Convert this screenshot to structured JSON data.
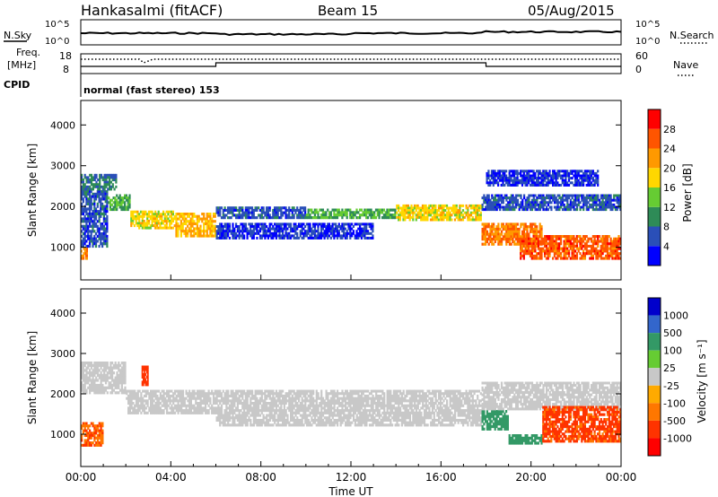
{
  "header": {
    "station": "Hankasalmi (fitACF)",
    "beam": "Beam 15",
    "date": "05/Aug/2015"
  },
  "top_panels": {
    "nsky_label": "N.Sky",
    "nsearch_label": "N.Search",
    "noise_ticks": [
      "10^5",
      "10^0"
    ],
    "freq_label_1": "Freq.",
    "freq_label_2": "[MHz]",
    "freq_ticks": [
      "18",
      "8"
    ],
    "nave_label": "Nave",
    "nave_ticks": [
      "60",
      "0"
    ],
    "cpid_label": "CPID",
    "cpid_text": "normal (fast stereo) 153"
  },
  "colors": {
    "power": [
      "#0000ff",
      "#2a4fb8",
      "#2e8b57",
      "#66cc33",
      "#ffd700",
      "#ff9900",
      "#ff5500",
      "#ff0000"
    ],
    "velocity": [
      "#0000cc",
      "#3366cc",
      "#339966",
      "#66cc33",
      "#c8c8c8",
      "#ffaa00",
      "#ff7700",
      "#ff3300",
      "#ff0000"
    ]
  },
  "chart_data": [
    {
      "type": "heatmap",
      "name": "power",
      "ylabel": "Slant Range [km]",
      "ylim": [
        200,
        4600
      ],
      "yticks": [
        1000,
        2000,
        3000,
        4000
      ],
      "colorbar_label": "Power [dB]",
      "colorbar_ticks": [
        "4",
        "8",
        "12",
        "16",
        "20",
        "24",
        "28"
      ],
      "bands": [
        {
          "x0": 0.0,
          "x1": 0.3,
          "r0": 700,
          "r1": 1000,
          "v": 26
        },
        {
          "x0": 0.0,
          "x1": 1.2,
          "r0": 1000,
          "r1": 2400,
          "v": 8
        },
        {
          "x0": 0.0,
          "x1": 1.6,
          "r0": 2400,
          "r1": 2800,
          "v": 10
        },
        {
          "x0": 1.2,
          "x1": 2.2,
          "r0": 1900,
          "r1": 2300,
          "v": 14
        },
        {
          "x0": 2.2,
          "x1": 4.2,
          "r0": 1450,
          "r1": 1900,
          "v": 20
        },
        {
          "x0": 4.2,
          "x1": 6.0,
          "r0": 1250,
          "r1": 1850,
          "v": 22
        },
        {
          "x0": 6.0,
          "x1": 10.0,
          "r0": 1700,
          "r1": 2000,
          "v": 8
        },
        {
          "x0": 6.0,
          "x1": 13.0,
          "r0": 1200,
          "r1": 1600,
          "v": 6
        },
        {
          "x0": 10.0,
          "x1": 14.0,
          "r0": 1700,
          "r1": 1950,
          "v": 14
        },
        {
          "x0": 14.0,
          "x1": 17.8,
          "r0": 1650,
          "r1": 2050,
          "v": 20
        },
        {
          "x0": 17.8,
          "x1": 20.5,
          "r0": 1050,
          "r1": 1600,
          "v": 26
        },
        {
          "x0": 17.8,
          "x1": 24.0,
          "r0": 1900,
          "r1": 2300,
          "v": 8
        },
        {
          "x0": 19.5,
          "x1": 24.0,
          "r0": 700,
          "r1": 1300,
          "v": 28
        },
        {
          "x0": 18.0,
          "x1": 23.0,
          "r0": 2500,
          "r1": 2900,
          "v": 6
        }
      ]
    },
    {
      "type": "heatmap",
      "name": "velocity",
      "xlabel": "Time UT",
      "ylabel": "Slant Range [km]",
      "ylim": [
        200,
        4600
      ],
      "yticks": [
        1000,
        2000,
        3000,
        4000
      ],
      "xticks": [
        "00:00",
        "04:00",
        "08:00",
        "12:00",
        "16:00",
        "20:00",
        "00:00"
      ],
      "colorbar_label": "Velocity [m s⁻¹]",
      "colorbar_ticks": [
        "1000",
        "500",
        "100",
        "25",
        "-25",
        "-100",
        "-500",
        "-1000"
      ],
      "bands": [
        {
          "x0": 0.0,
          "x1": 1.0,
          "r0": 700,
          "r1": 1300,
          "v": -300
        },
        {
          "x0": 0.0,
          "x1": 2.0,
          "r0": 2000,
          "r1": 2800,
          "v": 0
        },
        {
          "x0": 2.0,
          "x1": 6.0,
          "r0": 1500,
          "r1": 2100,
          "v": 0
        },
        {
          "x0": 2.7,
          "x1": 3.0,
          "r0": 2200,
          "r1": 2700,
          "v": -400
        },
        {
          "x0": 6.0,
          "x1": 17.8,
          "r0": 1200,
          "r1": 2100,
          "v": 0
        },
        {
          "x0": 17.8,
          "x1": 19.0,
          "r0": 1100,
          "r1": 1600,
          "v": 200
        },
        {
          "x0": 17.8,
          "x1": 24.0,
          "r0": 1600,
          "r1": 2300,
          "v": 0
        },
        {
          "x0": 19.0,
          "x1": 20.5,
          "r0": 750,
          "r1": 1000,
          "v": 200
        },
        {
          "x0": 20.5,
          "x1": 24.0,
          "r0": 800,
          "r1": 1700,
          "v": -350
        }
      ]
    }
  ]
}
